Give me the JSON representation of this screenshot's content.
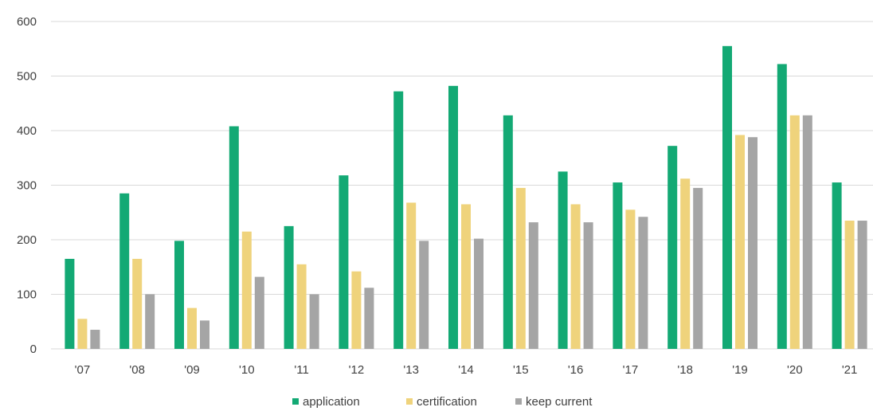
{
  "chart_data": {
    "type": "bar",
    "categories": [
      "'07",
      "'08",
      "'09",
      "'10",
      "'11",
      "'12",
      "'13",
      "'14",
      "'15",
      "'16",
      "'17",
      "'18",
      "'19",
      "'20",
      "'21"
    ],
    "series": [
      {
        "name": "application",
        "color": "#13a974",
        "values": [
          165,
          285,
          198,
          408,
          225,
          318,
          472,
          482,
          428,
          325,
          305,
          372,
          555,
          522,
          305
        ]
      },
      {
        "name": "certification",
        "color": "#efd37c",
        "values": [
          55,
          165,
          75,
          215,
          155,
          142,
          268,
          265,
          295,
          265,
          255,
          312,
          392,
          428,
          235
        ]
      },
      {
        "name": "keep current",
        "color": "#a5a5a5",
        "values": [
          35,
          100,
          52,
          132,
          100,
          112,
          198,
          202,
          232,
          232,
          242,
          295,
          388,
          428,
          235
        ]
      }
    ],
    "yticks": [
      0,
      100,
      200,
      300,
      400,
      500,
      600
    ],
    "ylim": [
      0,
      600
    ],
    "grid": true,
    "legend_position": "bottom"
  }
}
